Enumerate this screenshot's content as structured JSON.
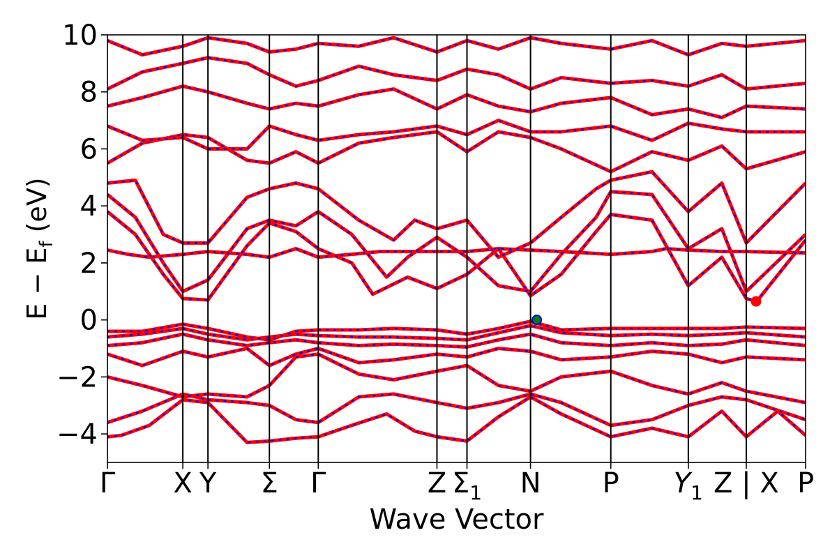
{
  "chart_data": {
    "type": "line",
    "title": "",
    "xlabel": "Wave Vector",
    "ylabel": "E − E",
    "ylabel_sub": "f",
    "ylabel_unit": " (eV)",
    "ylim": [
      -5,
      10
    ],
    "yticks": [
      -4,
      -2,
      0,
      2,
      4,
      6,
      8,
      10
    ],
    "yticklabels": [
      "−4",
      "−2",
      "0",
      "2",
      "4",
      "6",
      "8",
      "10"
    ],
    "xlim": [
      0,
      1
    ],
    "kpoints": [
      {
        "x": 0.0,
        "label": "Γ"
      },
      {
        "x": 0.108,
        "label": "X"
      },
      {
        "x": 0.144,
        "label": "Y"
      },
      {
        "x": 0.232,
        "label": "Σ"
      },
      {
        "x": 0.302,
        "label": "Γ"
      },
      {
        "x": 0.472,
        "label": "Z"
      },
      {
        "x": 0.515,
        "label": "Σ",
        "sub": "1"
      },
      {
        "x": 0.606,
        "label": "N"
      },
      {
        "x": 0.721,
        "label": "P"
      },
      {
        "x": 0.832,
        "label": "Y",
        "sub": "1"
      },
      {
        "x": 0.915,
        "label": "Z | X"
      },
      {
        "x": 1.0,
        "label": "P"
      }
    ],
    "grid": false,
    "series_styles": [
      {
        "color": "#ff0000",
        "style": "solid"
      },
      {
        "color": "#0000ff",
        "style": "dotted"
      }
    ],
    "markers": [
      {
        "x": 0.615,
        "y": 0.0,
        "face": "#008000",
        "edge": "#0000ff",
        "role": "VBM"
      },
      {
        "x": 0.929,
        "y": 0.65,
        "face": "#ff0000",
        "edge": "#ff0000",
        "role": "CBM"
      }
    ],
    "bands": [
      {
        "x": [
          0.0,
          0.02,
          0.06,
          0.108,
          0.144,
          0.2,
          0.232,
          0.27,
          0.302,
          0.35,
          0.4,
          0.44,
          0.472,
          0.515,
          0.56,
          0.606,
          0.65,
          0.721,
          0.78,
          0.832,
          0.88,
          0.915,
          0.96,
          1.0
        ],
        "y": [
          -4.1,
          -4.05,
          -3.7,
          -2.8,
          -2.9,
          -4.3,
          -4.25,
          -4.15,
          -4.1,
          -3.7,
          -3.3,
          -3.9,
          -4.1,
          -4.25,
          -3.4,
          -2.7,
          -3.3,
          -4.1,
          -3.8,
          -4.1,
          -3.2,
          -4.1,
          -3.2,
          -4.05
        ]
      },
      {
        "x": [
          0.0,
          0.05,
          0.108,
          0.144,
          0.2,
          0.232,
          0.27,
          0.302,
          0.36,
          0.41,
          0.472,
          0.515,
          0.56,
          0.606,
          0.65,
          0.721,
          0.78,
          0.832,
          0.88,
          0.915,
          1.0
        ],
        "y": [
          -3.6,
          -3.2,
          -2.6,
          -2.8,
          -2.9,
          -3.0,
          -3.5,
          -3.6,
          -2.7,
          -2.6,
          -2.9,
          -3.1,
          -2.9,
          -2.6,
          -2.9,
          -3.7,
          -3.5,
          -3.0,
          -2.7,
          -2.8,
          -3.5
        ]
      },
      {
        "x": [
          0.0,
          0.05,
          0.108,
          0.144,
          0.2,
          0.232,
          0.27,
          0.302,
          0.36,
          0.41,
          0.472,
          0.515,
          0.56,
          0.606,
          0.65,
          0.721,
          0.78,
          0.832,
          0.88,
          0.915,
          1.0
        ],
        "y": [
          -2.0,
          -2.3,
          -2.7,
          -2.6,
          -2.7,
          -2.3,
          -1.3,
          -1.2,
          -1.9,
          -2.1,
          -1.8,
          -1.6,
          -2.3,
          -2.5,
          -2.0,
          -1.8,
          -2.3,
          -2.6,
          -2.2,
          -2.5,
          -2.9
        ]
      },
      {
        "x": [
          0.0,
          0.05,
          0.108,
          0.144,
          0.2,
          0.232,
          0.27,
          0.302,
          0.36,
          0.41,
          0.472,
          0.515,
          0.56,
          0.606,
          0.65,
          0.721,
          0.78,
          0.832,
          0.88,
          0.915,
          1.0
        ],
        "y": [
          -1.2,
          -1.6,
          -1.1,
          -1.3,
          -1.0,
          -1.6,
          -1.2,
          -1.0,
          -1.5,
          -1.4,
          -1.2,
          -1.3,
          -1.0,
          -1.1,
          -1.4,
          -1.3,
          -1.1,
          -1.2,
          -1.5,
          -1.3,
          -1.4
        ]
      },
      {
        "x": [
          0.0,
          0.05,
          0.108,
          0.144,
          0.2,
          0.232,
          0.27,
          0.302,
          0.36,
          0.41,
          0.472,
          0.515,
          0.56,
          0.606,
          0.65,
          0.721,
          0.78,
          0.832,
          0.88,
          0.915,
          1.0
        ],
        "y": [
          -0.9,
          -0.8,
          -0.5,
          -0.7,
          -0.9,
          -0.8,
          -0.7,
          -0.8,
          -0.9,
          -0.85,
          -0.9,
          -0.95,
          -0.7,
          -0.5,
          -0.8,
          -0.9,
          -0.8,
          -0.9,
          -0.85,
          -0.7,
          -0.9
        ]
      },
      {
        "x": [
          0.0,
          0.05,
          0.108,
          0.144,
          0.2,
          0.232,
          0.27,
          0.302,
          0.36,
          0.41,
          0.472,
          0.515,
          0.56,
          0.606,
          0.65,
          0.721,
          0.78,
          0.832,
          0.88,
          0.915,
          1.0
        ],
        "y": [
          -0.6,
          -0.5,
          -0.3,
          -0.5,
          -0.7,
          -0.6,
          -0.5,
          -0.55,
          -0.6,
          -0.6,
          -0.65,
          -0.7,
          -0.45,
          -0.2,
          -0.45,
          -0.55,
          -0.5,
          -0.55,
          -0.5,
          -0.45,
          -0.6
        ]
      },
      {
        "x": [
          0.0,
          0.05,
          0.108,
          0.144,
          0.2,
          0.232,
          0.27,
          0.302,
          0.36,
          0.41,
          0.472,
          0.515,
          0.56,
          0.606,
          0.65,
          0.721,
          0.78,
          0.832,
          0.88,
          0.915,
          1.0
        ],
        "y": [
          -0.4,
          -0.4,
          -0.15,
          -0.3,
          -0.6,
          -0.7,
          -0.4,
          -0.35,
          -0.35,
          -0.3,
          -0.35,
          -0.5,
          -0.3,
          -0.05,
          -0.35,
          -0.3,
          -0.3,
          -0.3,
          -0.3,
          -0.25,
          -0.3
        ]
      },
      {
        "x": [
          0.0,
          0.03,
          0.06,
          0.108,
          0.144,
          0.2,
          0.232,
          0.27,
          0.302,
          0.35,
          0.39,
          0.43,
          0.472,
          0.515,
          0.56,
          0.606,
          0.65,
          0.721,
          0.78,
          0.8,
          0.832,
          0.88,
          0.915,
          1.0
        ],
        "y": [
          2.45,
          2.3,
          2.2,
          2.3,
          2.4,
          2.3,
          2.2,
          2.5,
          2.2,
          2.3,
          2.4,
          2.4,
          2.4,
          2.4,
          2.5,
          2.45,
          2.4,
          2.3,
          2.4,
          2.5,
          2.45,
          2.4,
          2.4,
          2.35
        ]
      },
      {
        "x": [
          0.0,
          0.04,
          0.08,
          0.108,
          0.144,
          0.2,
          0.232,
          0.27,
          0.302,
          0.35,
          0.38,
          0.43,
          0.472,
          0.515,
          0.56,
          0.606,
          0.65,
          0.7,
          0.721,
          0.78,
          0.832,
          0.88,
          0.915,
          0.93,
          1.0
        ],
        "y": [
          3.8,
          3.0,
          1.6,
          0.75,
          0.7,
          2.6,
          3.4,
          3.1,
          2.5,
          2.0,
          0.9,
          1.5,
          1.1,
          1.6,
          2.5,
          0.85,
          1.6,
          3.1,
          3.7,
          3.5,
          1.2,
          2.2,
          0.75,
          0.65,
          2.8
        ]
      },
      {
        "x": [
          0.0,
          0.04,
          0.08,
          0.108,
          0.144,
          0.2,
          0.232,
          0.27,
          0.302,
          0.35,
          0.4,
          0.43,
          0.472,
          0.515,
          0.56,
          0.606,
          0.65,
          0.7,
          0.721,
          0.78,
          0.832,
          0.88,
          0.915,
          1.0
        ],
        "y": [
          4.4,
          3.6,
          2.0,
          1.0,
          1.4,
          3.2,
          3.5,
          3.3,
          3.8,
          3.0,
          1.5,
          2.2,
          2.9,
          2.2,
          1.2,
          1.0,
          2.3,
          3.6,
          4.5,
          4.4,
          2.5,
          3.2,
          1.0,
          3.0
        ]
      },
      {
        "x": [
          0.0,
          0.04,
          0.08,
          0.108,
          0.144,
          0.2,
          0.232,
          0.27,
          0.302,
          0.36,
          0.41,
          0.44,
          0.472,
          0.515,
          0.56,
          0.606,
          0.65,
          0.7,
          0.721,
          0.78,
          0.832,
          0.88,
          0.915,
          1.0
        ],
        "y": [
          4.8,
          4.9,
          3.0,
          2.7,
          2.7,
          4.3,
          4.6,
          4.8,
          4.6,
          3.5,
          2.8,
          3.5,
          3.2,
          3.5,
          2.2,
          2.7,
          3.6,
          4.6,
          4.9,
          5.2,
          3.8,
          4.8,
          2.7,
          4.8
        ]
      },
      {
        "x": [
          0.0,
          0.05,
          0.108,
          0.144,
          0.2,
          0.232,
          0.27,
          0.302,
          0.36,
          0.41,
          0.472,
          0.515,
          0.56,
          0.606,
          0.65,
          0.721,
          0.78,
          0.832,
          0.88,
          0.915,
          1.0
        ],
        "y": [
          5.5,
          6.2,
          6.5,
          6.4,
          5.6,
          5.5,
          5.9,
          5.5,
          6.2,
          6.4,
          6.6,
          5.9,
          6.6,
          6.4,
          6.0,
          5.2,
          5.9,
          5.6,
          6.1,
          5.3,
          5.9
        ]
      },
      {
        "x": [
          0.0,
          0.05,
          0.108,
          0.144,
          0.2,
          0.232,
          0.27,
          0.302,
          0.36,
          0.41,
          0.472,
          0.515,
          0.56,
          0.606,
          0.65,
          0.721,
          0.78,
          0.832,
          0.88,
          0.915,
          1.0
        ],
        "y": [
          6.8,
          6.3,
          6.4,
          6.0,
          6.0,
          6.8,
          6.5,
          6.3,
          6.5,
          6.6,
          6.8,
          6.5,
          7.0,
          6.6,
          6.6,
          6.8,
          6.3,
          6.9,
          6.7,
          6.6,
          6.6
        ]
      },
      {
        "x": [
          0.0,
          0.05,
          0.108,
          0.144,
          0.2,
          0.232,
          0.27,
          0.302,
          0.36,
          0.41,
          0.472,
          0.515,
          0.56,
          0.606,
          0.65,
          0.721,
          0.78,
          0.832,
          0.88,
          0.915,
          1.0
        ],
        "y": [
          7.5,
          7.8,
          8.2,
          8.0,
          7.6,
          7.4,
          7.6,
          7.5,
          7.9,
          8.1,
          7.4,
          7.9,
          7.5,
          7.3,
          7.6,
          7.8,
          7.2,
          7.4,
          7.1,
          7.5,
          7.4
        ]
      },
      {
        "x": [
          0.0,
          0.05,
          0.108,
          0.144,
          0.2,
          0.232,
          0.27,
          0.302,
          0.36,
          0.41,
          0.472,
          0.515,
          0.56,
          0.606,
          0.65,
          0.721,
          0.78,
          0.832,
          0.88,
          0.915,
          1.0
        ],
        "y": [
          8.1,
          8.7,
          9.0,
          9.2,
          9.0,
          8.6,
          8.2,
          8.4,
          8.9,
          8.6,
          8.4,
          8.8,
          8.6,
          8.1,
          8.5,
          8.3,
          8.4,
          8.2,
          8.6,
          8.1,
          8.3
        ]
      },
      {
        "x": [
          0.0,
          0.05,
          0.108,
          0.144,
          0.2,
          0.232,
          0.27,
          0.302,
          0.36,
          0.41,
          0.472,
          0.515,
          0.56,
          0.606,
          0.65,
          0.721,
          0.78,
          0.832,
          0.88,
          0.915,
          1.0
        ],
        "y": [
          9.8,
          9.3,
          9.6,
          9.9,
          9.7,
          9.4,
          9.5,
          9.7,
          9.6,
          9.9,
          9.4,
          9.8,
          9.5,
          9.9,
          9.7,
          9.5,
          9.8,
          9.3,
          9.7,
          9.6,
          9.8
        ]
      }
    ]
  }
}
